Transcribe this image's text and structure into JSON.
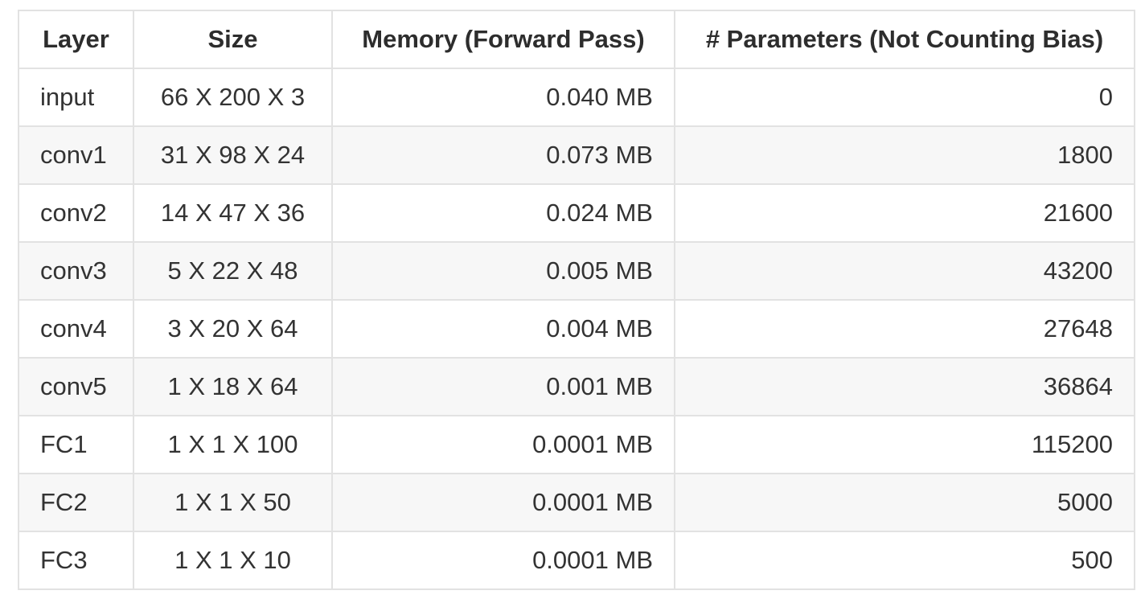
{
  "colors": {
    "body_text": "#333333",
    "header_text": "#2d2d2d",
    "border": "#e2e2e2",
    "stripe_row_background": "#f7f7f7",
    "row_background": "#ffffff"
  },
  "table": {
    "headers": [
      {
        "label": "Layer"
      },
      {
        "label": "Size"
      },
      {
        "label": "Memory (Forward Pass)"
      },
      {
        "label": "# Parameters (Not Counting Bias)"
      }
    ],
    "rows": [
      {
        "layer": "input",
        "size": "66 X 200 X 3",
        "memory": "0.040 MB",
        "params": "0"
      },
      {
        "layer": "conv1",
        "size": "31 X 98 X 24",
        "memory": "0.073 MB",
        "params": "1800"
      },
      {
        "layer": "conv2",
        "size": "14 X 47 X 36",
        "memory": "0.024 MB",
        "params": "21600"
      },
      {
        "layer": "conv3",
        "size": "5 X 22 X 48",
        "memory": "0.005 MB",
        "params": "43200"
      },
      {
        "layer": "conv4",
        "size": "3 X 20 X 64",
        "memory": "0.004 MB",
        "params": "27648"
      },
      {
        "layer": "conv5",
        "size": "1 X 18 X 64",
        "memory": "0.001 MB",
        "params": "36864"
      },
      {
        "layer": "FC1",
        "size": "1 X 1 X 100",
        "memory": "0.0001 MB",
        "params": "115200"
      },
      {
        "layer": "FC2",
        "size": "1 X 1 X 50",
        "memory": "0.0001 MB",
        "params": "5000"
      },
      {
        "layer": "FC3",
        "size": "1 X 1 X 10",
        "memory": "0.0001 MB",
        "params": "500"
      }
    ]
  }
}
